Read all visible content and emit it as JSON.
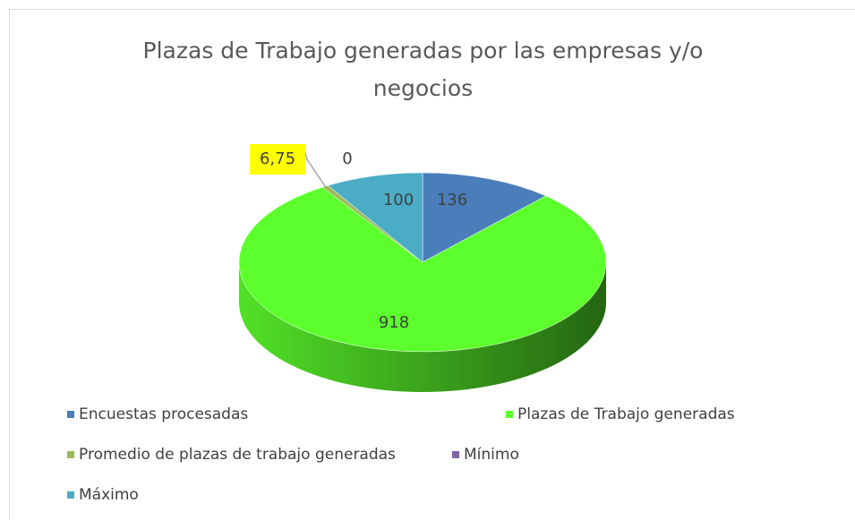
{
  "chart_data": {
    "type": "pie3d",
    "title": "Plazas de Trabajo generadas por las empresas y/o negocios",
    "categories": [
      "Encuestas procesadas",
      "Plazas de Trabajo generadas",
      "Promedio de plazas de trabajo generadas",
      "Mínimo",
      "Máximo"
    ],
    "values": [
      136,
      918,
      6.75,
      0,
      100
    ],
    "value_labels": [
      "136",
      "918",
      "6,75",
      "0",
      "100"
    ],
    "colors": [
      "#4a7ebb",
      "#5cff2c",
      "#9bbb59",
      "#8064a2",
      "#4bacc6"
    ],
    "legend": "bottom"
  }
}
